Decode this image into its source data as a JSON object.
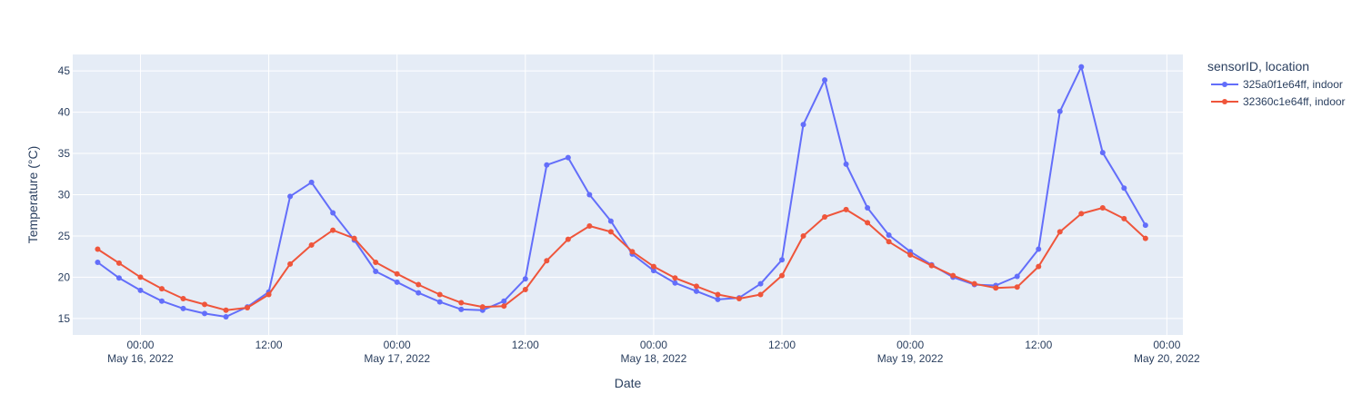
{
  "chart_data": {
    "type": "line",
    "xlabel": "Date",
    "ylabel": "Temperature (°C)",
    "x_range": [
      "2022-05-15T17:40",
      "2022-05-20T01:30"
    ],
    "ylim": [
      13,
      47
    ],
    "y_ticks": [
      15,
      20,
      25,
      30,
      35,
      40,
      45
    ],
    "x_ticks": [
      {
        "t": "2022-05-16T00:00",
        "label1": "00:00",
        "label2": "May 16, 2022"
      },
      {
        "t": "2022-05-16T12:00",
        "label1": "12:00",
        "label2": ""
      },
      {
        "t": "2022-05-17T00:00",
        "label1": "00:00",
        "label2": "May 17, 2022"
      },
      {
        "t": "2022-05-17T12:00",
        "label1": "12:00",
        "label2": ""
      },
      {
        "t": "2022-05-18T00:00",
        "label1": "00:00",
        "label2": "May 18, 2022"
      },
      {
        "t": "2022-05-18T12:00",
        "label1": "12:00",
        "label2": ""
      },
      {
        "t": "2022-05-19T00:00",
        "label1": "00:00",
        "label2": "May 19, 2022"
      },
      {
        "t": "2022-05-19T12:00",
        "label1": "12:00",
        "label2": ""
      },
      {
        "t": "2022-05-20T00:00",
        "label1": "00:00",
        "label2": "May 20, 2022"
      }
    ],
    "grid": true,
    "legend_title": "sensorID, location",
    "legend_position": "top-right outside plot",
    "x": [
      "2022-05-15T20:00",
      "2022-05-15T22:00",
      "2022-05-16T00:00",
      "2022-05-16T02:00",
      "2022-05-16T04:00",
      "2022-05-16T06:00",
      "2022-05-16T08:00",
      "2022-05-16T10:00",
      "2022-05-16T12:00",
      "2022-05-16T14:00",
      "2022-05-16T16:00",
      "2022-05-16T18:00",
      "2022-05-16T20:00",
      "2022-05-16T22:00",
      "2022-05-17T00:00",
      "2022-05-17T02:00",
      "2022-05-17T04:00",
      "2022-05-17T06:00",
      "2022-05-17T08:00",
      "2022-05-17T10:00",
      "2022-05-17T12:00",
      "2022-05-17T14:00",
      "2022-05-17T16:00",
      "2022-05-17T18:00",
      "2022-05-17T20:00",
      "2022-05-17T22:00",
      "2022-05-18T00:00",
      "2022-05-18T02:00",
      "2022-05-18T04:00",
      "2022-05-18T06:00",
      "2022-05-18T08:00",
      "2022-05-18T10:00",
      "2022-05-18T12:00",
      "2022-05-18T14:00",
      "2022-05-18T16:00",
      "2022-05-18T18:00",
      "2022-05-18T20:00",
      "2022-05-18T22:00",
      "2022-05-19T00:00",
      "2022-05-19T02:00",
      "2022-05-19T04:00",
      "2022-05-19T06:00",
      "2022-05-19T08:00",
      "2022-05-19T10:00",
      "2022-05-19T12:00",
      "2022-05-19T14:00",
      "2022-05-19T16:00",
      "2022-05-19T18:00",
      "2022-05-19T20:00",
      "2022-05-19T22:00"
    ],
    "series": [
      {
        "name": "325a0f1e64ff, indoor",
        "color": "#636efa",
        "values": [
          21.8,
          19.9,
          18.4,
          17.1,
          16.2,
          15.6,
          15.2,
          16.4,
          18.2,
          29.8,
          31.5,
          27.8,
          24.5,
          20.7,
          19.4,
          18.1,
          17.0,
          16.1,
          16.0,
          17.1,
          19.8,
          33.6,
          34.5,
          30.0,
          26.8,
          22.8,
          20.8,
          19.3,
          18.3,
          17.3,
          17.5,
          19.2,
          22.1,
          38.5,
          43.9,
          33.7,
          28.4,
          25.1,
          23.1,
          21.5,
          20.0,
          19.1,
          19.0,
          20.1,
          23.4,
          40.1,
          45.5,
          35.1,
          30.8,
          26.3
        ]
      },
      {
        "name": "32360c1e64ff, indoor",
        "color": "#ef553b",
        "values": [
          23.4,
          21.7,
          20.0,
          18.6,
          17.4,
          16.7,
          16.0,
          16.3,
          17.9,
          21.6,
          23.9,
          25.7,
          24.7,
          21.8,
          20.4,
          19.1,
          17.9,
          16.9,
          16.4,
          16.5,
          18.5,
          22.0,
          24.6,
          26.2,
          25.5,
          23.1,
          21.3,
          19.9,
          18.9,
          17.9,
          17.4,
          17.9,
          20.2,
          25.0,
          27.3,
          28.2,
          26.6,
          24.3,
          22.7,
          21.4,
          20.2,
          19.2,
          18.7,
          18.8,
          21.3,
          25.5,
          27.7,
          28.4,
          27.1,
          24.7
        ]
      }
    ]
  }
}
